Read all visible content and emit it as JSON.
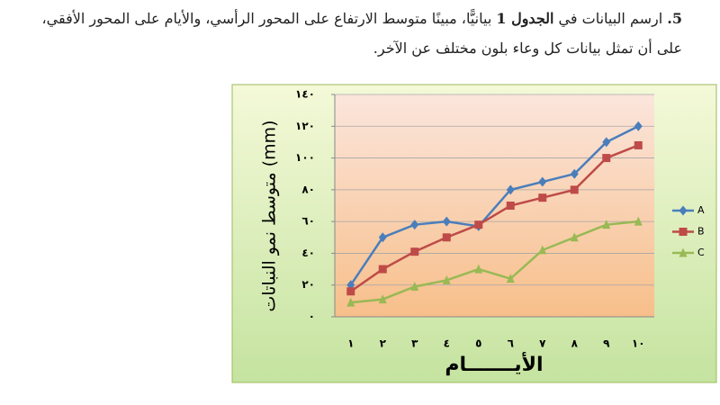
{
  "question": {
    "number": "5.",
    "text_before": "ارسم البيانات في ",
    "bold": "الجدول 1",
    "text_after": " بيانيًّا، مبينًا متوسط الارتفاع على المحور الرأسي، والأيام على المحور الأفقي، على أن تمثل بيانات كل وعاء بلون مختلف عن الآخر."
  },
  "chart_data": {
    "type": "line",
    "y_label": "متوسط نمو النباتات (mm)",
    "x_label": "الأيـــــــام",
    "categories": [
      "١",
      "٢",
      "٣",
      "٤",
      "٥",
      "٦",
      "٧",
      "٨",
      "٩",
      "١٠"
    ],
    "series": [
      {
        "name": "A",
        "color": "#4a7ebb",
        "marker": "diamond",
        "values": [
          20,
          50,
          58,
          60,
          57,
          80,
          85,
          90,
          110,
          120
        ]
      },
      {
        "name": "B",
        "color": "#be4b48",
        "marker": "square",
        "values": [
          16,
          30,
          41,
          50,
          58,
          70,
          75,
          80,
          100,
          108
        ]
      },
      {
        "name": "C",
        "color": "#98b954",
        "marker": "triangle",
        "values": [
          9,
          11,
          19,
          23,
          30,
          24,
          42,
          50,
          58,
          60
        ]
      }
    ],
    "ylim": [
      0,
      140
    ],
    "yticks": [
      {
        "value": 0,
        "label": "٠"
      },
      {
        "value": 20,
        "label": "٢٠"
      },
      {
        "value": 40,
        "label": "٤٠"
      },
      {
        "value": 60,
        "label": "٦٠"
      },
      {
        "value": 80,
        "label": "٨٠"
      },
      {
        "value": 100,
        "label": "١٠٠"
      },
      {
        "value": 120,
        "label": "١٢٠"
      },
      {
        "value": 140,
        "label": "١٤٠"
      }
    ],
    "grid": true,
    "legend": "right"
  }
}
